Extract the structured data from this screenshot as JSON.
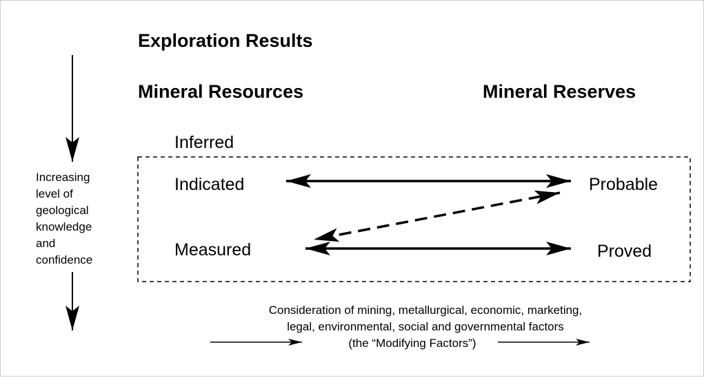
{
  "title": "Exploration Results",
  "left_heading": "Mineral Resources",
  "right_heading": "Mineral Reserves",
  "side_label": [
    "Increasing",
    "level of",
    "geological",
    "knowledge",
    "and",
    "confidence"
  ],
  "resources": [
    "Inferred",
    "Indicated",
    "Measured"
  ],
  "reserves": [
    "Probable",
    "Proved"
  ],
  "footnote": [
    "Consideration of mining, metallurgical, economic, marketing,",
    "legal, environmental, social and governmental factors",
    "(the “Modifying Factors”)"
  ]
}
